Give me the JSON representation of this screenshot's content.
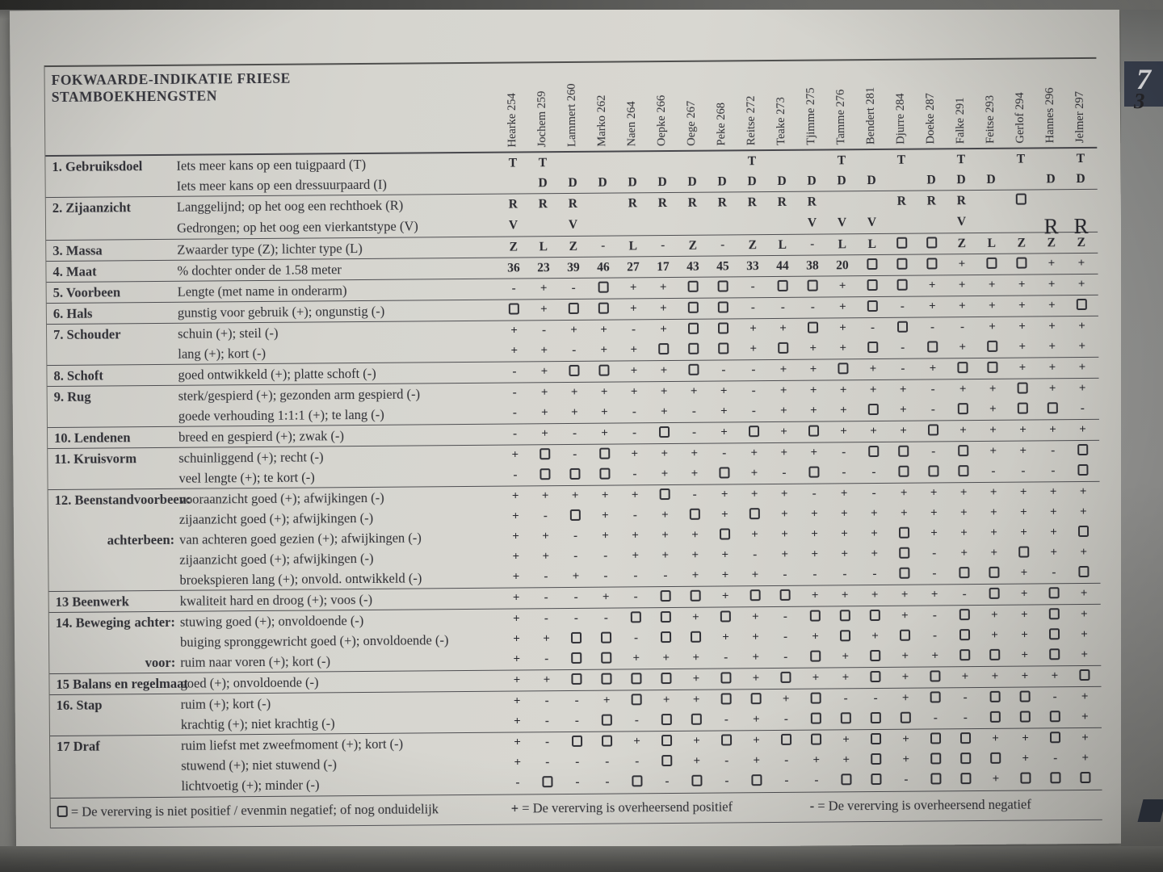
{
  "page": {
    "title_line1": "FOKWAARDE-INDIKATIE FRIESE",
    "title_line2": "STAMBOEKHENGSTEN",
    "page_tab_number": "7",
    "page_sub_number": "3"
  },
  "columns": [
    "Hearke 254",
    "Jochem 259",
    "Lammert 260",
    "Marko 262",
    "Naen 264",
    "Oepke 266",
    "Oege 267",
    "Peke 268",
    "Reitse 272",
    "Teake 273",
    "Tjimme 275",
    "Tamme 276",
    "Bendert 281",
    "Djurre 284",
    "Doeke 287",
    "Falke 291",
    "Feitse 293",
    "Gerlof 294",
    "Hannes 296",
    "Jelmer 297"
  ],
  "symbols": {
    "square": "□",
    "plus": "+",
    "minus": "-"
  },
  "groups": [
    {
      "num": "1.",
      "name": "Gebruiksdoel",
      "rows": [
        {
          "desc": "Iets meer kans op een tuigpaard (T)",
          "values": [
            "T",
            "T",
            "",
            "",
            "",
            "",
            "",
            "",
            "T",
            "",
            "",
            "T",
            "",
            "T",
            "",
            "T",
            "",
            "T",
            "",
            "T"
          ]
        },
        {
          "desc": "Iets meer kans op een dressuurpaard (I)",
          "values": [
            "",
            "D",
            "D",
            "D",
            "D",
            "D",
            "D",
            "D",
            "D",
            "D",
            "D",
            "D",
            "D",
            "",
            "D",
            "D",
            "D",
            "",
            "D",
            "D"
          ]
        }
      ]
    },
    {
      "num": "2.",
      "name": "Zijaanzicht",
      "rows": [
        {
          "desc": "Langgelijnd; op het oog een rechthoek (R)",
          "values": [
            "R",
            "R",
            "R",
            "",
            "R",
            "R",
            "R",
            "R",
            "R",
            "R",
            "R",
            "",
            "",
            "R",
            "R",
            "R",
            "",
            "□",
            "",
            ""
          ]
        },
        {
          "desc": "Gedrongen; op het oog een vierkantstype (V)",
          "values": [
            "V",
            "",
            "V",
            "",
            "",
            "",
            "",
            "",
            "",
            "",
            "V",
            "V",
            "V",
            "",
            "",
            "V",
            "",
            "",
            "R",
            "R"
          ],
          "big_cols": [
            19,
            20
          ]
        }
      ]
    },
    {
      "num": "3.",
      "name": "Massa",
      "rows": [
        {
          "desc": "Zwaarder type (Z); lichter type (L)",
          "values": [
            "Z",
            "L",
            "Z",
            "-",
            "L",
            "-",
            "Z",
            "-",
            "Z",
            "L",
            "-",
            "L",
            "L",
            "□",
            "□",
            "Z",
            "L",
            "Z",
            "Z",
            "Z"
          ]
        }
      ]
    },
    {
      "num": "4.",
      "name": "Maat",
      "rows": [
        {
          "desc": "% dochter onder de 1.58 meter",
          "values": [
            "36",
            "23",
            "39",
            "46",
            "27",
            "17",
            "43",
            "45",
            "33",
            "44",
            "38",
            "20",
            "□",
            "□",
            "□",
            "+",
            "□",
            "□",
            "+",
            "+"
          ]
        }
      ]
    },
    {
      "num": "5.",
      "name": "Voorbeen",
      "rows": [
        {
          "desc": "Lengte (met name in onderarm)",
          "values": [
            "-",
            "+",
            "-",
            "□",
            "+",
            "+",
            "□",
            "□",
            "-",
            "□",
            "□",
            "+",
            "□",
            "□",
            "+",
            "+",
            "+",
            "+",
            "+",
            "+"
          ]
        }
      ]
    },
    {
      "num": "6.",
      "name": "Hals",
      "rows": [
        {
          "desc": "gunstig voor gebruik (+); ongunstig (-)",
          "values": [
            "□",
            "+",
            "□",
            "□",
            "+",
            "+",
            "□",
            "□",
            "-",
            "-",
            "-",
            "+",
            "□",
            "-",
            "+",
            "+",
            "+",
            "+",
            "+",
            "□"
          ]
        }
      ]
    },
    {
      "num": "7.",
      "name": "Schouder",
      "rows": [
        {
          "desc": "schuin (+); steil (-)",
          "values": [
            "+",
            "-",
            "+",
            "+",
            "-",
            "+",
            "□",
            "□",
            "+",
            "+",
            "□",
            "+",
            "-",
            "□",
            "-",
            "-",
            "+",
            "+",
            "+",
            "+"
          ]
        },
        {
          "desc": "lang (+); kort (-)",
          "values": [
            "+",
            "+",
            "-",
            "+",
            "+",
            "□",
            "□",
            "□",
            "+",
            "□",
            "+",
            "+",
            "□",
            "-",
            "□",
            "+",
            "□",
            "+",
            "+",
            "+"
          ]
        }
      ]
    },
    {
      "num": "8.",
      "name": "Schoft",
      "rows": [
        {
          "desc": "goed ontwikkeld (+); platte schoft (-)",
          "values": [
            "-",
            "+",
            "□",
            "□",
            "+",
            "+",
            "□",
            "-",
            "-",
            "+",
            "+",
            "□",
            "+",
            "-",
            "+",
            "□",
            "□",
            "+",
            "+",
            "+"
          ]
        }
      ]
    },
    {
      "num": "9.",
      "name": "Rug",
      "rows": [
        {
          "desc": "sterk/gespierd (+); gezonden arm gespierd (-)",
          "values": [
            "-",
            "+",
            "+",
            "+",
            "+",
            "+",
            "+",
            "+",
            "-",
            "+",
            "+",
            "+",
            "+",
            "+",
            "-",
            "+",
            "+",
            "□",
            "+",
            "+"
          ]
        },
        {
          "desc": "goede verhouding 1:1:1 (+); te lang (-)",
          "values": [
            "-",
            "+",
            "+",
            "+",
            "-",
            "+",
            "-",
            "+",
            "-",
            "+",
            "+",
            "+",
            "□",
            "+",
            "-",
            "□",
            "+",
            "□",
            "□",
            "-"
          ]
        }
      ]
    },
    {
      "num": "10.",
      "name": "Lendenen",
      "rows": [
        {
          "desc": "breed en gespierd (+); zwak (-)",
          "values": [
            "-",
            "+",
            "-",
            "+",
            "-",
            "□",
            "-",
            "+",
            "□",
            "+",
            "□",
            "+",
            "+",
            "+",
            "□",
            "+",
            "+",
            "+",
            "+",
            "+"
          ]
        }
      ]
    },
    {
      "num": "11.",
      "name": "Kruisvorm",
      "rows": [
        {
          "desc": "schuinliggend (+); recht (-)",
          "values": [
            "+",
            "□",
            "-",
            "□",
            "+",
            "+",
            "+",
            "-",
            "+",
            "+",
            "+",
            "-",
            "□",
            "□",
            "-",
            "□",
            "+",
            "+",
            "-",
            "□"
          ]
        },
        {
          "desc": "veel lengte (+); te kort (-)",
          "values": [
            "-",
            "□",
            "□",
            "□",
            "-",
            "+",
            "+",
            "□",
            "+",
            "-",
            "□",
            "-",
            "-",
            "□",
            "□",
            "□",
            "-",
            "-",
            "-",
            "□"
          ]
        }
      ]
    },
    {
      "num": "12.",
      "name": "Beenstandvoorbeen:",
      "rows": [
        {
          "desc": "vooraanzicht goed (+); afwijkingen (-)",
          "values": [
            "+",
            "+",
            "+",
            "+",
            "+",
            "□",
            "-",
            "+",
            "+",
            "+",
            "-",
            "+",
            "-",
            "+",
            "+",
            "+",
            "+",
            "+",
            "+",
            "+"
          ]
        },
        {
          "desc": "zijaanzicht goed (+); afwijkingen (-)",
          "values": [
            "+",
            "-",
            "□",
            "+",
            "-",
            "+",
            "□",
            "+",
            "□",
            "+",
            "+",
            "+",
            "+",
            "+",
            "+",
            "+",
            "+",
            "+",
            "+",
            "+"
          ]
        },
        {
          "sub": "achterbeen:",
          "desc": "van achteren goed gezien (+); afwijkingen (-)",
          "values": [
            "+",
            "+",
            "-",
            "+",
            "+",
            "+",
            "+",
            "□",
            "+",
            "+",
            "+",
            "+",
            "+",
            "□",
            "+",
            "+",
            "+",
            "+",
            "+",
            "□"
          ]
        },
        {
          "desc": "zijaanzicht goed (+); afwijkingen (-)",
          "values": [
            "+",
            "+",
            "-",
            "-",
            "+",
            "+",
            "+",
            "+",
            "-",
            "+",
            "+",
            "+",
            "+",
            "□",
            "-",
            "+",
            "+",
            "□",
            "+",
            "+"
          ]
        },
        {
          "desc": "broekspieren lang (+); onvold. ontwikkeld (-)",
          "values": [
            "+",
            "-",
            "+",
            "-",
            "-",
            "-",
            "+",
            "+",
            "+",
            "-",
            "-",
            "-",
            "-",
            "□",
            "-",
            "□",
            "□",
            "+",
            "-",
            "□"
          ]
        }
      ]
    },
    {
      "num": "13",
      "name": "Beenwerk",
      "rows": [
        {
          "desc": "kwaliteit hard en droog (+); voos (-)",
          "values": [
            "+",
            "-",
            "-",
            "+",
            "-",
            "□",
            "□",
            "+",
            "□",
            "□",
            "+",
            "+",
            "+",
            "+",
            "+",
            "-",
            "□",
            "+",
            "□",
            "+"
          ]
        }
      ]
    },
    {
      "num": "14.",
      "name": "Beweging",
      "rows": [
        {
          "sub_right": "achter:",
          "desc": "stuwing goed (+); onvoldoende (-)",
          "values": [
            "+",
            "-",
            "-",
            "-",
            "□",
            "□",
            "+",
            "□",
            "+",
            "-",
            "□",
            "□",
            "□",
            "+",
            "-",
            "□",
            "+",
            "+",
            "□",
            "+"
          ]
        },
        {
          "desc": "buiging spronggewricht goed (+); onvoldoende (-)",
          "values": [
            "+",
            "+",
            "□",
            "□",
            "-",
            "□",
            "□",
            "+",
            "+",
            "-",
            "+",
            "□",
            "+",
            "□",
            "-",
            "□",
            "+",
            "+",
            "□",
            "+"
          ]
        },
        {
          "sub": "voor:",
          "desc": "ruim naar voren (+); kort (-)",
          "values": [
            "+",
            "-",
            "□",
            "□",
            "+",
            "+",
            "+",
            "-",
            "+",
            "-",
            "□",
            "+",
            "□",
            "+",
            "+",
            "□",
            "□",
            "+",
            "□",
            "+"
          ]
        }
      ]
    },
    {
      "num": "15",
      "name": "Balans en regelmaat",
      "rows": [
        {
          "desc": "goed (+); onvoldoende (-)",
          "values": [
            "+",
            "+",
            "□",
            "□",
            "□",
            "□",
            "+",
            "□",
            "+",
            "□",
            "+",
            "+",
            "□",
            "+",
            "□",
            "+",
            "+",
            "+",
            "+",
            "□"
          ]
        }
      ]
    },
    {
      "num": "16.",
      "name": "Stap",
      "rows": [
        {
          "desc": "ruim (+); kort (-)",
          "values": [
            "+",
            "-",
            "-",
            "+",
            "□",
            "+",
            "+",
            "□",
            "□",
            "+",
            "□",
            "-",
            "-",
            "+",
            "□",
            "-",
            "□",
            "□",
            "-",
            "+"
          ]
        },
        {
          "desc": "krachtig (+); niet krachtig (-)",
          "values": [
            "+",
            "-",
            "-",
            "□",
            "-",
            "□",
            "□",
            "-",
            "+",
            "-",
            "□",
            "□",
            "□",
            "□",
            "-",
            "-",
            "□",
            "□",
            "□",
            "+"
          ]
        }
      ]
    },
    {
      "num": "17",
      "name": "Draf",
      "rows": [
        {
          "desc": "ruim liefst met zweefmoment (+); kort (-)",
          "values": [
            "+",
            "-",
            "□",
            "□",
            "+",
            "□",
            "+",
            "□",
            "+",
            "□",
            "□",
            "+",
            "□",
            "+",
            "□",
            "□",
            "+",
            "+",
            "□",
            "+"
          ]
        },
        {
          "desc": "stuwend (+); niet stuwend (-)",
          "values": [
            "+",
            "-",
            "-",
            "-",
            "-",
            "□",
            "+",
            "-",
            "+",
            "-",
            "+",
            "+",
            "□",
            "+",
            "□",
            "□",
            "□",
            "+",
            "-",
            "+"
          ]
        },
        {
          "desc": "lichtvoetig (+); minder (-)",
          "values": [
            "-",
            "□",
            "-",
            "-",
            "□",
            "-",
            "□",
            "-",
            "□",
            "-",
            "-",
            "□",
            "□",
            "-",
            "□",
            "□",
            "+",
            "□",
            "□",
            "□"
          ]
        }
      ]
    }
  ],
  "legend": [
    {
      "symbol": "□",
      "text": "De vererving is niet positief / evenmin negatief; of nog onduidelijk"
    },
    {
      "symbol": "+",
      "text": "De vererving is overheersend positief"
    },
    {
      "symbol": "-",
      "text": "De vererving is overheersend negatief"
    }
  ]
}
